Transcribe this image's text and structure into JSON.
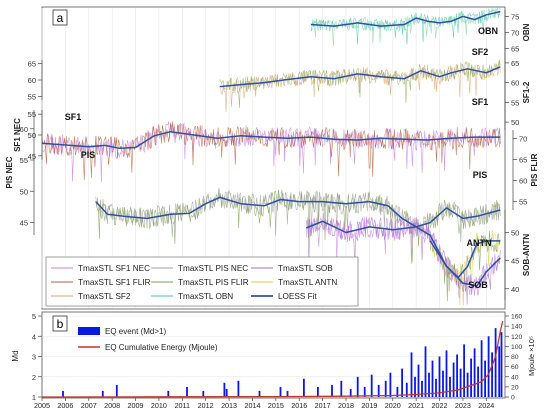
{
  "chart_data": [
    {
      "type": "line",
      "panel_label": "a",
      "x_range": [
        2005,
        2024.8
      ],
      "legend_placement": "bottom-left",
      "axes": [
        {
          "id": "L1",
          "label": "SF1 NEC",
          "side": "left",
          "ticks": [
            45,
            50,
            55
          ]
        },
        {
          "id": "L2",
          "label": "PIS NEC",
          "side": "left",
          "ticks": [
            45,
            50,
            55,
            60
          ]
        },
        {
          "id": "L3",
          "label": "",
          "side": "left",
          "ticks": [
            55,
            60,
            65
          ]
        },
        {
          "id": "R1",
          "label": "OBN",
          "side": "right",
          "ticks": [
            65,
            70,
            75
          ]
        },
        {
          "id": "R2",
          "label": "SF1-2",
          "side": "right",
          "ticks": [
            50,
            55,
            60,
            65
          ]
        },
        {
          "id": "R3",
          "label": "PIS FLIR",
          "side": "right",
          "ticks": [
            55,
            60,
            65,
            70
          ]
        },
        {
          "id": "R4",
          "label": "SOB-ANTN",
          "side": "right",
          "ticks": [
            40,
            45,
            50
          ]
        }
      ],
      "legend": [
        {
          "name": "TmaxSTL SF1 NEC",
          "color": "#c77ee8"
        },
        {
          "name": "TmaxSTL PIS NEC",
          "color": "#9e9e9e"
        },
        {
          "name": "TmaxSTL SOB",
          "color": "#a56fc6"
        },
        {
          "name": "TmaxSTL SF1 FLIR",
          "color": "#b25f3a"
        },
        {
          "name": "TmaxSTL PIS FLIR",
          "color": "#7c9e4d"
        },
        {
          "name": "TmaxSTL ANTN",
          "color": "#d9d23a"
        },
        {
          "name": "TmaxSTL SF2",
          "color": "#e0a371"
        },
        {
          "name": "TmaxSTL OBN",
          "color": "#4fc4b6"
        },
        {
          "name": "LOESS Fit",
          "color": "#2f4fa8"
        }
      ],
      "series_labels": [
        "OBN",
        "SF2",
        "SF1",
        "SF1",
        "PIS",
        "PIS",
        "ANTN",
        "SOB"
      ],
      "loess_fits": [
        {
          "series": "OBN",
          "x": [
            2016.5,
            2017.5,
            2018.5,
            2019.5,
            2020.5,
            2021,
            2021.5,
            2022,
            2022.5,
            2023,
            2023.5,
            2024,
            2024.6
          ],
          "y": [
            72.5,
            72.0,
            73.0,
            72.0,
            72.5,
            74.5,
            73.5,
            73.0,
            73.5,
            75.0,
            74.0,
            75.5,
            76.5
          ]
        },
        {
          "series": "SF2",
          "x": [
            2012.6,
            2013.5,
            2014.5,
            2015.5,
            2016.5,
            2017.5,
            2018.5,
            2019.5,
            2020.5,
            2021.2,
            2022,
            2022.5,
            2023.2,
            2024,
            2024.6
          ],
          "y": [
            59.0,
            59.5,
            60.0,
            60.8,
            61.5,
            61.0,
            62.2,
            61.5,
            61.0,
            63.0,
            61.5,
            62.5,
            63.5,
            62.5,
            64.0
          ]
        },
        {
          "series": "SF1",
          "x": [
            2005,
            2006,
            2007,
            2007.7,
            2008.3,
            2009,
            2009.8,
            2010.5,
            2011.5,
            2012.5,
            2013.5,
            2014.5,
            2015.5,
            2016.5,
            2017.5,
            2018.5,
            2019.5,
            2020.5,
            2021.5,
            2022.5,
            2023.5,
            2024.6
          ],
          "y": [
            48.0,
            47.6,
            47.2,
            47.5,
            46.8,
            47.0,
            49.8,
            50.8,
            50.0,
            49.2,
            49.8,
            49.5,
            49.2,
            49.5,
            49.0,
            48.8,
            49.2,
            49.0,
            48.8,
            49.2,
            49.5,
            49.5
          ]
        },
        {
          "series": "PIS",
          "x": [
            2007.3,
            2007.8,
            2008.5,
            2009.5,
            2010.5,
            2011.3,
            2012,
            2012.6,
            2013.5,
            2014.5,
            2015.2,
            2016,
            2017,
            2018,
            2019,
            2019.8,
            2020.4,
            2021,
            2021.6,
            2022.3,
            2023,
            2023.6,
            2024.6
          ],
          "y": [
            55.0,
            52.0,
            51.5,
            51.0,
            52.0,
            52.2,
            54.5,
            56.0,
            54.5,
            54.0,
            55.5,
            55.0,
            55.0,
            54.5,
            55.0,
            54.0,
            51.0,
            49.0,
            50.0,
            53.5,
            51.0,
            51.5,
            53.0
          ]
        },
        {
          "series": "ANTN",
          "x": [
            2021.6,
            2022.3,
            2022.8,
            2023.2,
            2023.6,
            2024,
            2024.6
          ],
          "y": [
            48.5,
            44.0,
            42.0,
            44.0,
            48.0,
            48.5,
            48.5
          ]
        },
        {
          "series": "SOB",
          "x": [
            2016.3,
            2017,
            2018,
            2019,
            2020,
            2021,
            2021.6,
            2022.3,
            2023,
            2023.6,
            2024,
            2024.6
          ],
          "y": [
            50.8,
            52.0,
            50.0,
            51.0,
            50.5,
            51.0,
            49.5,
            44.0,
            41.0,
            40.5,
            43.0,
            45.5
          ]
        }
      ]
    },
    {
      "type": "bar",
      "panel_label": "b",
      "x_range": [
        2005,
        2024.8
      ],
      "xticks": [
        "2005",
        "2006",
        "2007",
        "2008",
        "2009",
        "2010",
        "2011",
        "2012",
        "2013",
        "2014",
        "2015",
        "2016",
        "2017",
        "2018",
        "2019",
        "2020",
        "2021",
        "2022",
        "2023",
        "2024"
      ],
      "ylabel": "Md",
      "ylim": [
        1,
        5
      ],
      "yticks": [
        1,
        2,
        3,
        4,
        5
      ],
      "y2label": "Mjoule ×10⁵",
      "y2lim": [
        0,
        160
      ],
      "y2ticks": [
        0,
        20,
        40,
        60,
        80,
        100,
        120,
        140,
        160
      ],
      "legend_placement": "top-left",
      "legend": [
        {
          "name": "EQ event (Md>1)",
          "color": "#0a18e6"
        },
        {
          "name": "EQ Cumulative Energy (Mjoule)",
          "color": "#c0392b"
        }
      ],
      "eq_events": [
        {
          "x": 2005.9,
          "md": 1.3
        },
        {
          "x": 2007.6,
          "md": 1.3
        },
        {
          "x": 2008.2,
          "md": 1.6
        },
        {
          "x": 2010.4,
          "md": 1.3
        },
        {
          "x": 2011.2,
          "md": 1.5
        },
        {
          "x": 2011.9,
          "md": 1.3
        },
        {
          "x": 2012.8,
          "md": 1.7
        },
        {
          "x": 2012.9,
          "md": 1.4
        },
        {
          "x": 2013.4,
          "md": 1.8
        },
        {
          "x": 2014.3,
          "md": 1.3
        },
        {
          "x": 2015.2,
          "md": 1.5
        },
        {
          "x": 2015.5,
          "md": 1.3
        },
        {
          "x": 2016.2,
          "md": 1.9
        },
        {
          "x": 2016.8,
          "md": 1.5
        },
        {
          "x": 2017.4,
          "md": 1.6
        },
        {
          "x": 2017.8,
          "md": 1.8
        },
        {
          "x": 2018.2,
          "md": 1.4
        },
        {
          "x": 2018.5,
          "md": 2.0
        },
        {
          "x": 2018.8,
          "md": 1.5
        },
        {
          "x": 2019.1,
          "md": 2.1
        },
        {
          "x": 2019.4,
          "md": 1.6
        },
        {
          "x": 2019.7,
          "md": 1.8
        },
        {
          "x": 2019.9,
          "md": 2.2
        },
        {
          "x": 2020.2,
          "md": 1.5
        },
        {
          "x": 2020.4,
          "md": 2.4
        },
        {
          "x": 2020.6,
          "md": 1.7
        },
        {
          "x": 2020.8,
          "md": 3.2
        },
        {
          "x": 2020.95,
          "md": 2.0
        },
        {
          "x": 2021.1,
          "md": 2.6
        },
        {
          "x": 2021.25,
          "md": 1.8
        },
        {
          "x": 2021.4,
          "md": 3.5
        },
        {
          "x": 2021.55,
          "md": 2.2
        },
        {
          "x": 2021.7,
          "md": 2.8
        },
        {
          "x": 2021.85,
          "md": 1.9
        },
        {
          "x": 2022.0,
          "md": 3.0
        },
        {
          "x": 2022.15,
          "md": 2.3
        },
        {
          "x": 2022.3,
          "md": 3.3
        },
        {
          "x": 2022.45,
          "md": 2.0
        },
        {
          "x": 2022.6,
          "md": 2.7
        },
        {
          "x": 2022.75,
          "md": 3.1
        },
        {
          "x": 2022.9,
          "md": 2.4
        },
        {
          "x": 2023.05,
          "md": 3.6
        },
        {
          "x": 2023.2,
          "md": 2.2
        },
        {
          "x": 2023.35,
          "md": 2.9
        },
        {
          "x": 2023.5,
          "md": 3.4
        },
        {
          "x": 2023.65,
          "md": 2.5
        },
        {
          "x": 2023.8,
          "md": 3.8
        },
        {
          "x": 2023.95,
          "md": 2.8
        },
        {
          "x": 2024.1,
          "md": 4.0
        },
        {
          "x": 2024.25,
          "md": 3.2
        },
        {
          "x": 2024.4,
          "md": 4.4
        },
        {
          "x": 2024.55,
          "md": 3.5
        },
        {
          "x": 2024.65,
          "md": 4.2
        }
      ],
      "cumulative_energy": {
        "x": [
          2005,
          2010,
          2015,
          2018,
          2020,
          2021,
          2022,
          2022.8,
          2023.3,
          2023.8,
          2024.1,
          2024.4,
          2024.6,
          2024.7
        ],
        "y": [
          0,
          0.3,
          0.8,
          1.5,
          3,
          5,
          8,
          14,
          22,
          30,
          45,
          80,
          130,
          150
        ]
      }
    }
  ]
}
